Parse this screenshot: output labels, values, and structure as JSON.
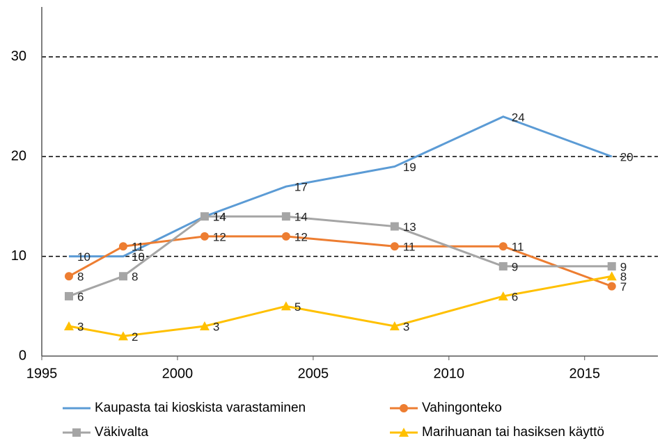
{
  "chart_data": {
    "type": "line",
    "x": [
      1996,
      1998,
      2001,
      2004,
      2008,
      2012,
      2016
    ],
    "series": [
      {
        "name": "Kaupasta tai kioskista varastaminen",
        "color": "#5b9bd5",
        "marker": "none",
        "values": [
          10,
          10,
          14,
          17,
          19,
          24,
          20
        ]
      },
      {
        "name": "Vahingonteko",
        "color": "#ed7d31",
        "marker": "circle",
        "values": [
          8,
          11,
          12,
          12,
          11,
          11,
          7
        ]
      },
      {
        "name": "Väkivalta",
        "color": "#a5a5a5",
        "marker": "square",
        "values": [
          6,
          8,
          14,
          14,
          13,
          9,
          9
        ]
      },
      {
        "name": "Marihuanan tai hasiksen käyttö",
        "color": "#ffc000",
        "marker": "triangle",
        "values": [
          3,
          2,
          3,
          5,
          3,
          6,
          8
        ]
      }
    ],
    "xlim": [
      1995,
      2017.7
    ],
    "xticks": [
      1995,
      2000,
      2005,
      2010,
      2015
    ],
    "ylim": [
      0,
      35
    ],
    "yticks": [
      0,
      10,
      20,
      30
    ],
    "grid": true,
    "legend": "bottom"
  }
}
